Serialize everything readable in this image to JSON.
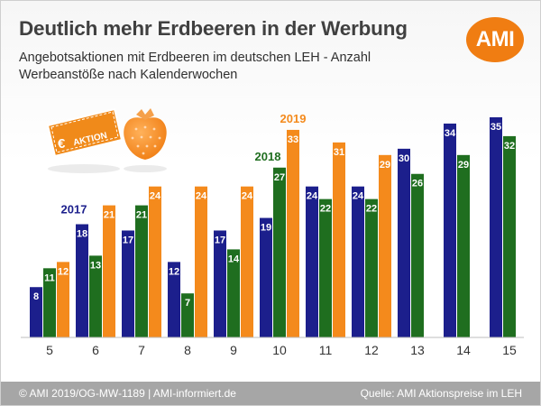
{
  "header": {
    "title": "Deutlich mehr Erdbeeren in der Werbung",
    "subtitle_line1": "Angebotsaktionen mit Erdbeeren im deutschen LEH - Anzahl",
    "subtitle_line2": "Werbeanstöße nach Kalenderwochen",
    "logo_text": "AMI"
  },
  "badge": {
    "euro": "€",
    "label": "AKTION"
  },
  "colors": {
    "2017": "#1c1f8c",
    "2018": "#1f6e1f",
    "2019": "#f48a1c",
    "accent": "#f07d12"
  },
  "chart_data": {
    "type": "bar",
    "categories": [
      "5",
      "6",
      "7",
      "8",
      "9",
      "10",
      "11",
      "12",
      "13",
      "14",
      "15"
    ],
    "series": [
      {
        "name": "2017",
        "values": [
          8,
          18,
          17,
          12,
          17,
          19,
          24,
          24,
          30,
          34,
          35
        ]
      },
      {
        "name": "2018",
        "values": [
          11,
          13,
          21,
          7,
          14,
          27,
          22,
          22,
          26,
          29,
          32
        ]
      },
      {
        "name": "2019",
        "values": [
          12,
          21,
          24,
          24,
          24,
          33,
          31,
          29,
          null,
          null,
          null
        ]
      }
    ],
    "ylim": [
      0,
      35
    ],
    "grid": false,
    "legend": "inline labels"
  },
  "footer": {
    "left": "© AMI 2019/OG-MW-1189 | AMI-informiert.de",
    "right": "Quelle: AMI Aktionspreise im LEH"
  }
}
